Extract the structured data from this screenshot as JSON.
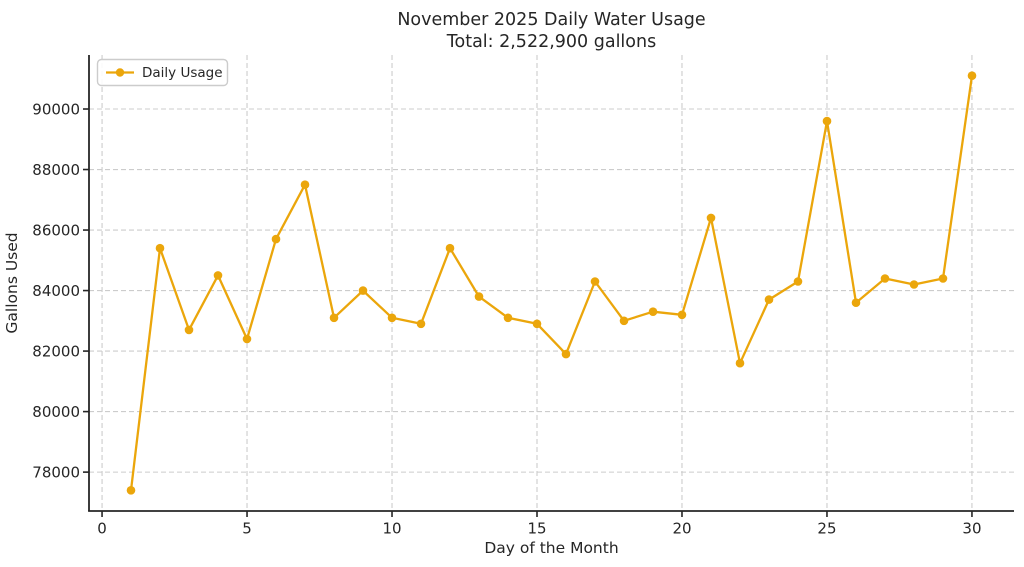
{
  "chart_data": {
    "type": "line",
    "title": "November 2025 Daily Water Usage",
    "subtitle": "Total: 2,522,900 gallons",
    "xlabel": "Day of the Month",
    "ylabel": "Gallons Used",
    "legend": {
      "position": "upper-left",
      "label": "Daily Usage"
    },
    "x": [
      1,
      2,
      3,
      4,
      5,
      6,
      7,
      8,
      9,
      10,
      11,
      12,
      13,
      14,
      15,
      16,
      17,
      18,
      19,
      20,
      21,
      22,
      23,
      24,
      25,
      26,
      27,
      28,
      29,
      30
    ],
    "series": [
      {
        "name": "Daily Usage",
        "values": [
          77400,
          85400,
          82700,
          84500,
          82400,
          85700,
          87500,
          83100,
          84000,
          83100,
          82900,
          85400,
          83800,
          83100,
          82900,
          81900,
          84300,
          83000,
          83300,
          83200,
          86400,
          81600,
          83700,
          84300,
          89600,
          83600,
          84400,
          84200,
          84400,
          91100
        ]
      }
    ],
    "total_gallons": 2522900,
    "xticks": [
      0,
      5,
      10,
      15,
      20,
      25,
      30
    ],
    "yticks": [
      78000,
      80000,
      82000,
      84000,
      86000,
      88000,
      90000
    ],
    "xlim": [
      -0.45,
      31.45
    ],
    "ylim": [
      76715,
      91785
    ],
    "grid": true,
    "grid_style": "dashed",
    "colors": {
      "line": "#EBA60B",
      "marker": "#EBA60B",
      "axis": "#262626",
      "text": "#262626",
      "grid": "#cccccc",
      "legend_border": "#cccccc",
      "background": "#ffffff"
    }
  }
}
